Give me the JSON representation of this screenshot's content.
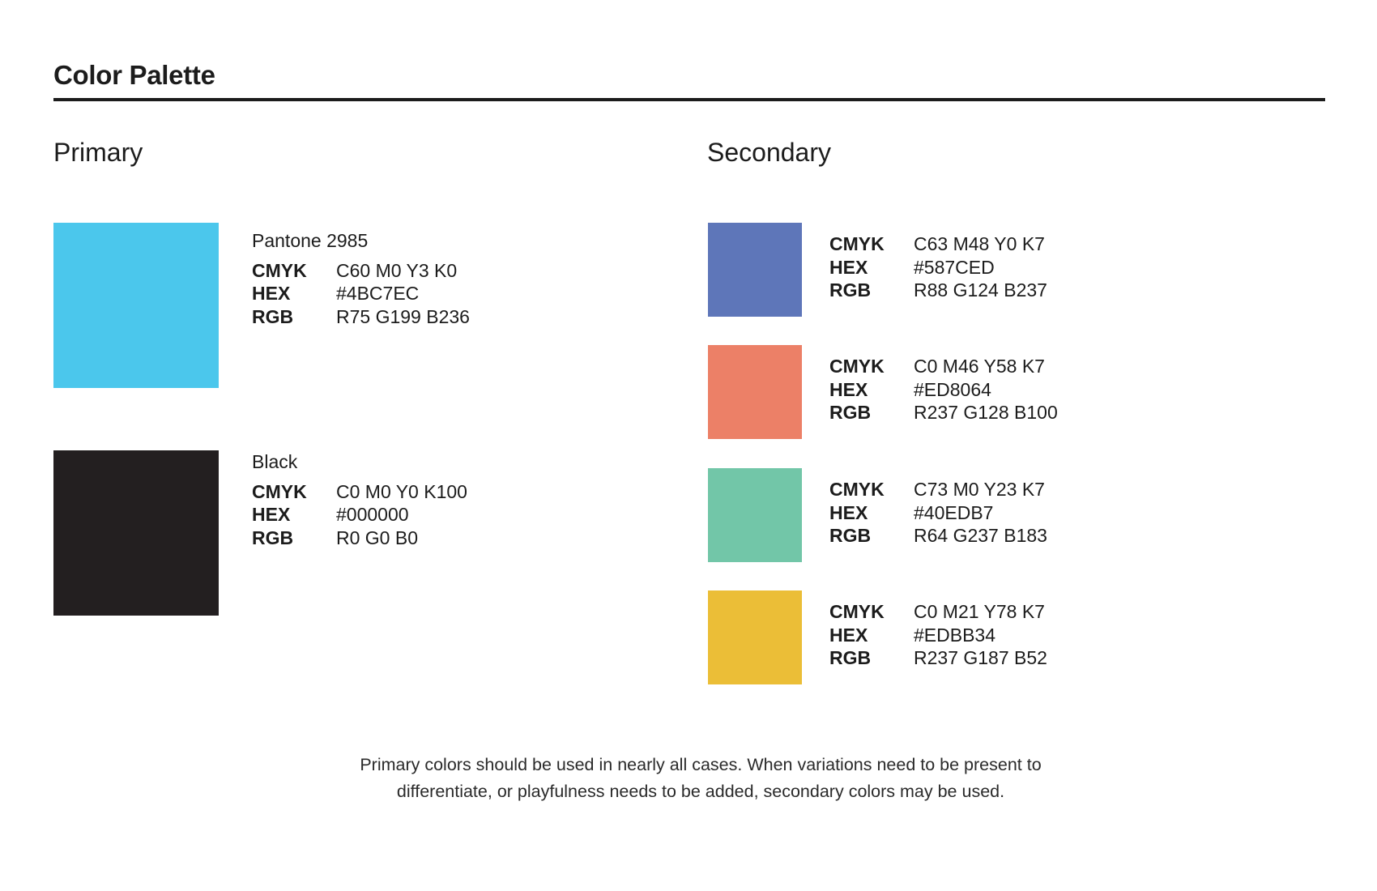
{
  "page": {
    "title": "Color Palette"
  },
  "labels": {
    "cmyk": "CMYK",
    "hex": "HEX",
    "rgb": "RGB"
  },
  "primary": {
    "heading": "Primary",
    "swatches": [
      {
        "name": "Pantone 2985",
        "color": "#4BC7EC",
        "cmyk": "C60 M0 Y3 K0",
        "hex": "#4BC7EC",
        "rgb": "R75 G199 B236"
      },
      {
        "name": "Black",
        "color": "#231F20",
        "cmyk": "C0 M0 Y0 K100",
        "hex": "#000000",
        "rgb": "R0 G0 B0"
      }
    ]
  },
  "secondary": {
    "heading": "Secondary",
    "swatches": [
      {
        "color": "#5E76B9",
        "cmyk": "C63 M48 Y0 K7",
        "hex": "#587CED",
        "rgb": "R88 G124 B237"
      },
      {
        "color": "#EC8067",
        "cmyk": "C0 M46 Y58 K7",
        "hex": "#ED8064",
        "rgb": "R237 G128 B100"
      },
      {
        "color": "#72C6A8",
        "cmyk": "C73 M0 Y23 K7",
        "hex": "#40EDB7",
        "rgb": "R64 G237 B183"
      },
      {
        "color": "#EBBE37",
        "cmyk": "C0 M21 Y78 K7",
        "hex": "#EDBB34",
        "rgb": "R237 G187 B52"
      }
    ]
  },
  "footer": {
    "line1": "Primary colors should be used in nearly all cases. When variations need to be present to",
    "line2": "differentiate, or playfulness needs to be added, secondary colors may be used."
  }
}
